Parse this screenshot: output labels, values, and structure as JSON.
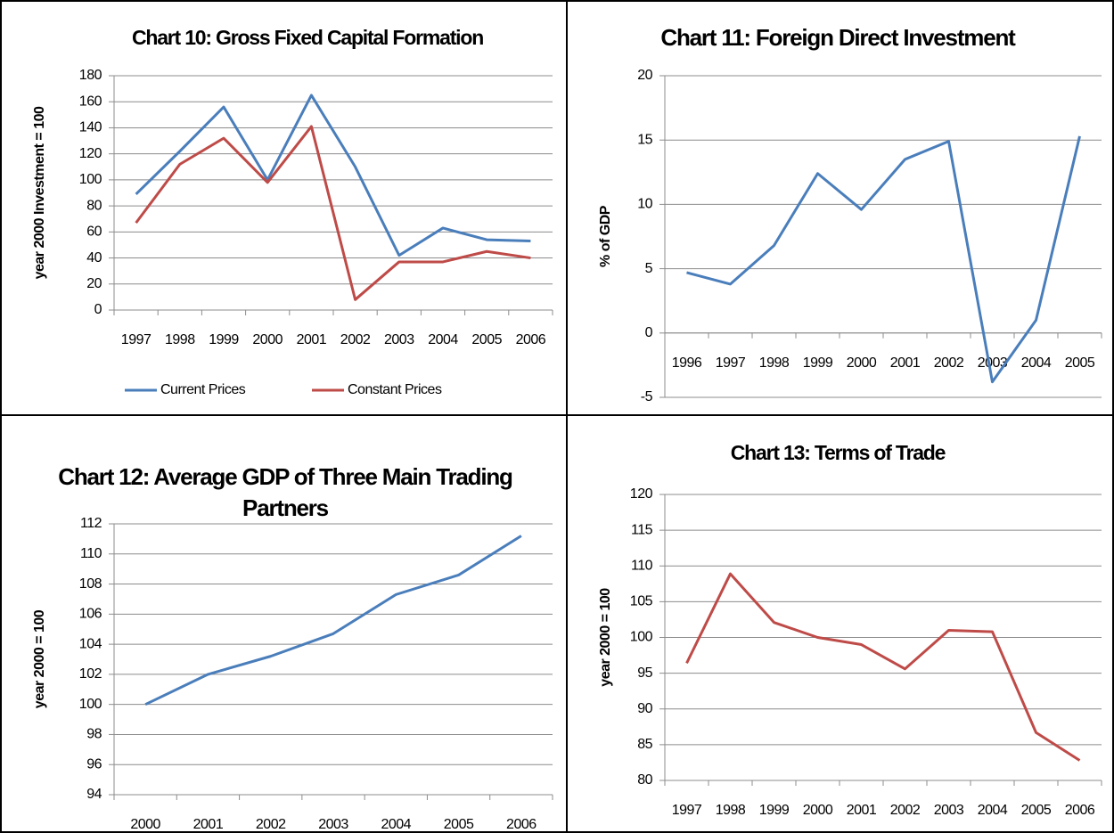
{
  "chart_data": [
    {
      "type": "line",
      "title": "Chart 10: Gross Fixed Capital Formation",
      "y_label": "year 2000 Investment = 100",
      "categories": [
        "1997",
        "1998",
        "1999",
        "2000",
        "2001",
        "2002",
        "2003",
        "2004",
        "2005",
        "2006"
      ],
      "series": [
        {
          "name": "Current Prices",
          "color": "#4a7ebb",
          "values": [
            89,
            122,
            156,
            100,
            165,
            110,
            42,
            63,
            54,
            53
          ]
        },
        {
          "name": "Constant Prices",
          "color": "#be4b48",
          "values": [
            67,
            112,
            132,
            98,
            141,
            8,
            37,
            37,
            45,
            40
          ]
        }
      ],
      "ylim": [
        0,
        180
      ],
      "yticks": [
        0,
        20,
        40,
        60,
        80,
        100,
        120,
        140,
        160,
        180
      ],
      "grid": true,
      "legend": "bottom"
    },
    {
      "type": "line",
      "title": "Chart 11: Foreign Direct Investment",
      "y_label": "% of GDP",
      "categories": [
        "1996",
        "1997",
        "1998",
        "1999",
        "2000",
        "2001",
        "2002",
        "2003",
        "2004",
        "2005"
      ],
      "series": [
        {
          "color": "#4a7ebb",
          "values": [
            4.7,
            3.8,
            6.8,
            12.4,
            9.6,
            13.5,
            14.9,
            -3.8,
            1.0,
            15.3
          ]
        }
      ],
      "ylim": [
        -5,
        20
      ],
      "yticks": [
        -5,
        0,
        5,
        10,
        15,
        20
      ],
      "grid": true
    },
    {
      "type": "line",
      "title": "Chart 12: Average GDP of Three Main Trading Partners",
      "y_label": "year 2000 = 100",
      "categories": [
        "2000",
        "2001",
        "2002",
        "2003",
        "2004",
        "2005",
        "2006"
      ],
      "series": [
        {
          "color": "#4a7ebb",
          "values": [
            100,
            102,
            103.2,
            104.7,
            107.3,
            108.6,
            111.2
          ]
        }
      ],
      "ylim": [
        94,
        112
      ],
      "yticks": [
        94,
        96,
        98,
        100,
        102,
        104,
        106,
        108,
        110,
        112
      ],
      "grid": true
    },
    {
      "type": "line",
      "title": "Chart 13: Terms of Trade",
      "y_label": "year 2000 = 100",
      "categories": [
        "1997",
        "1998",
        "1999",
        "2000",
        "2001",
        "2002",
        "2003",
        "2004",
        "2005",
        "2006"
      ],
      "series": [
        {
          "color": "#be4b48",
          "values": [
            96.4,
            108.9,
            102.1,
            100,
            99,
            95.6,
            101,
            100.8,
            86.7,
            82.8
          ]
        }
      ],
      "ylim": [
        80,
        120
      ],
      "yticks": [
        80,
        85,
        90,
        95,
        100,
        105,
        110,
        115,
        120
      ],
      "grid": true
    }
  ]
}
